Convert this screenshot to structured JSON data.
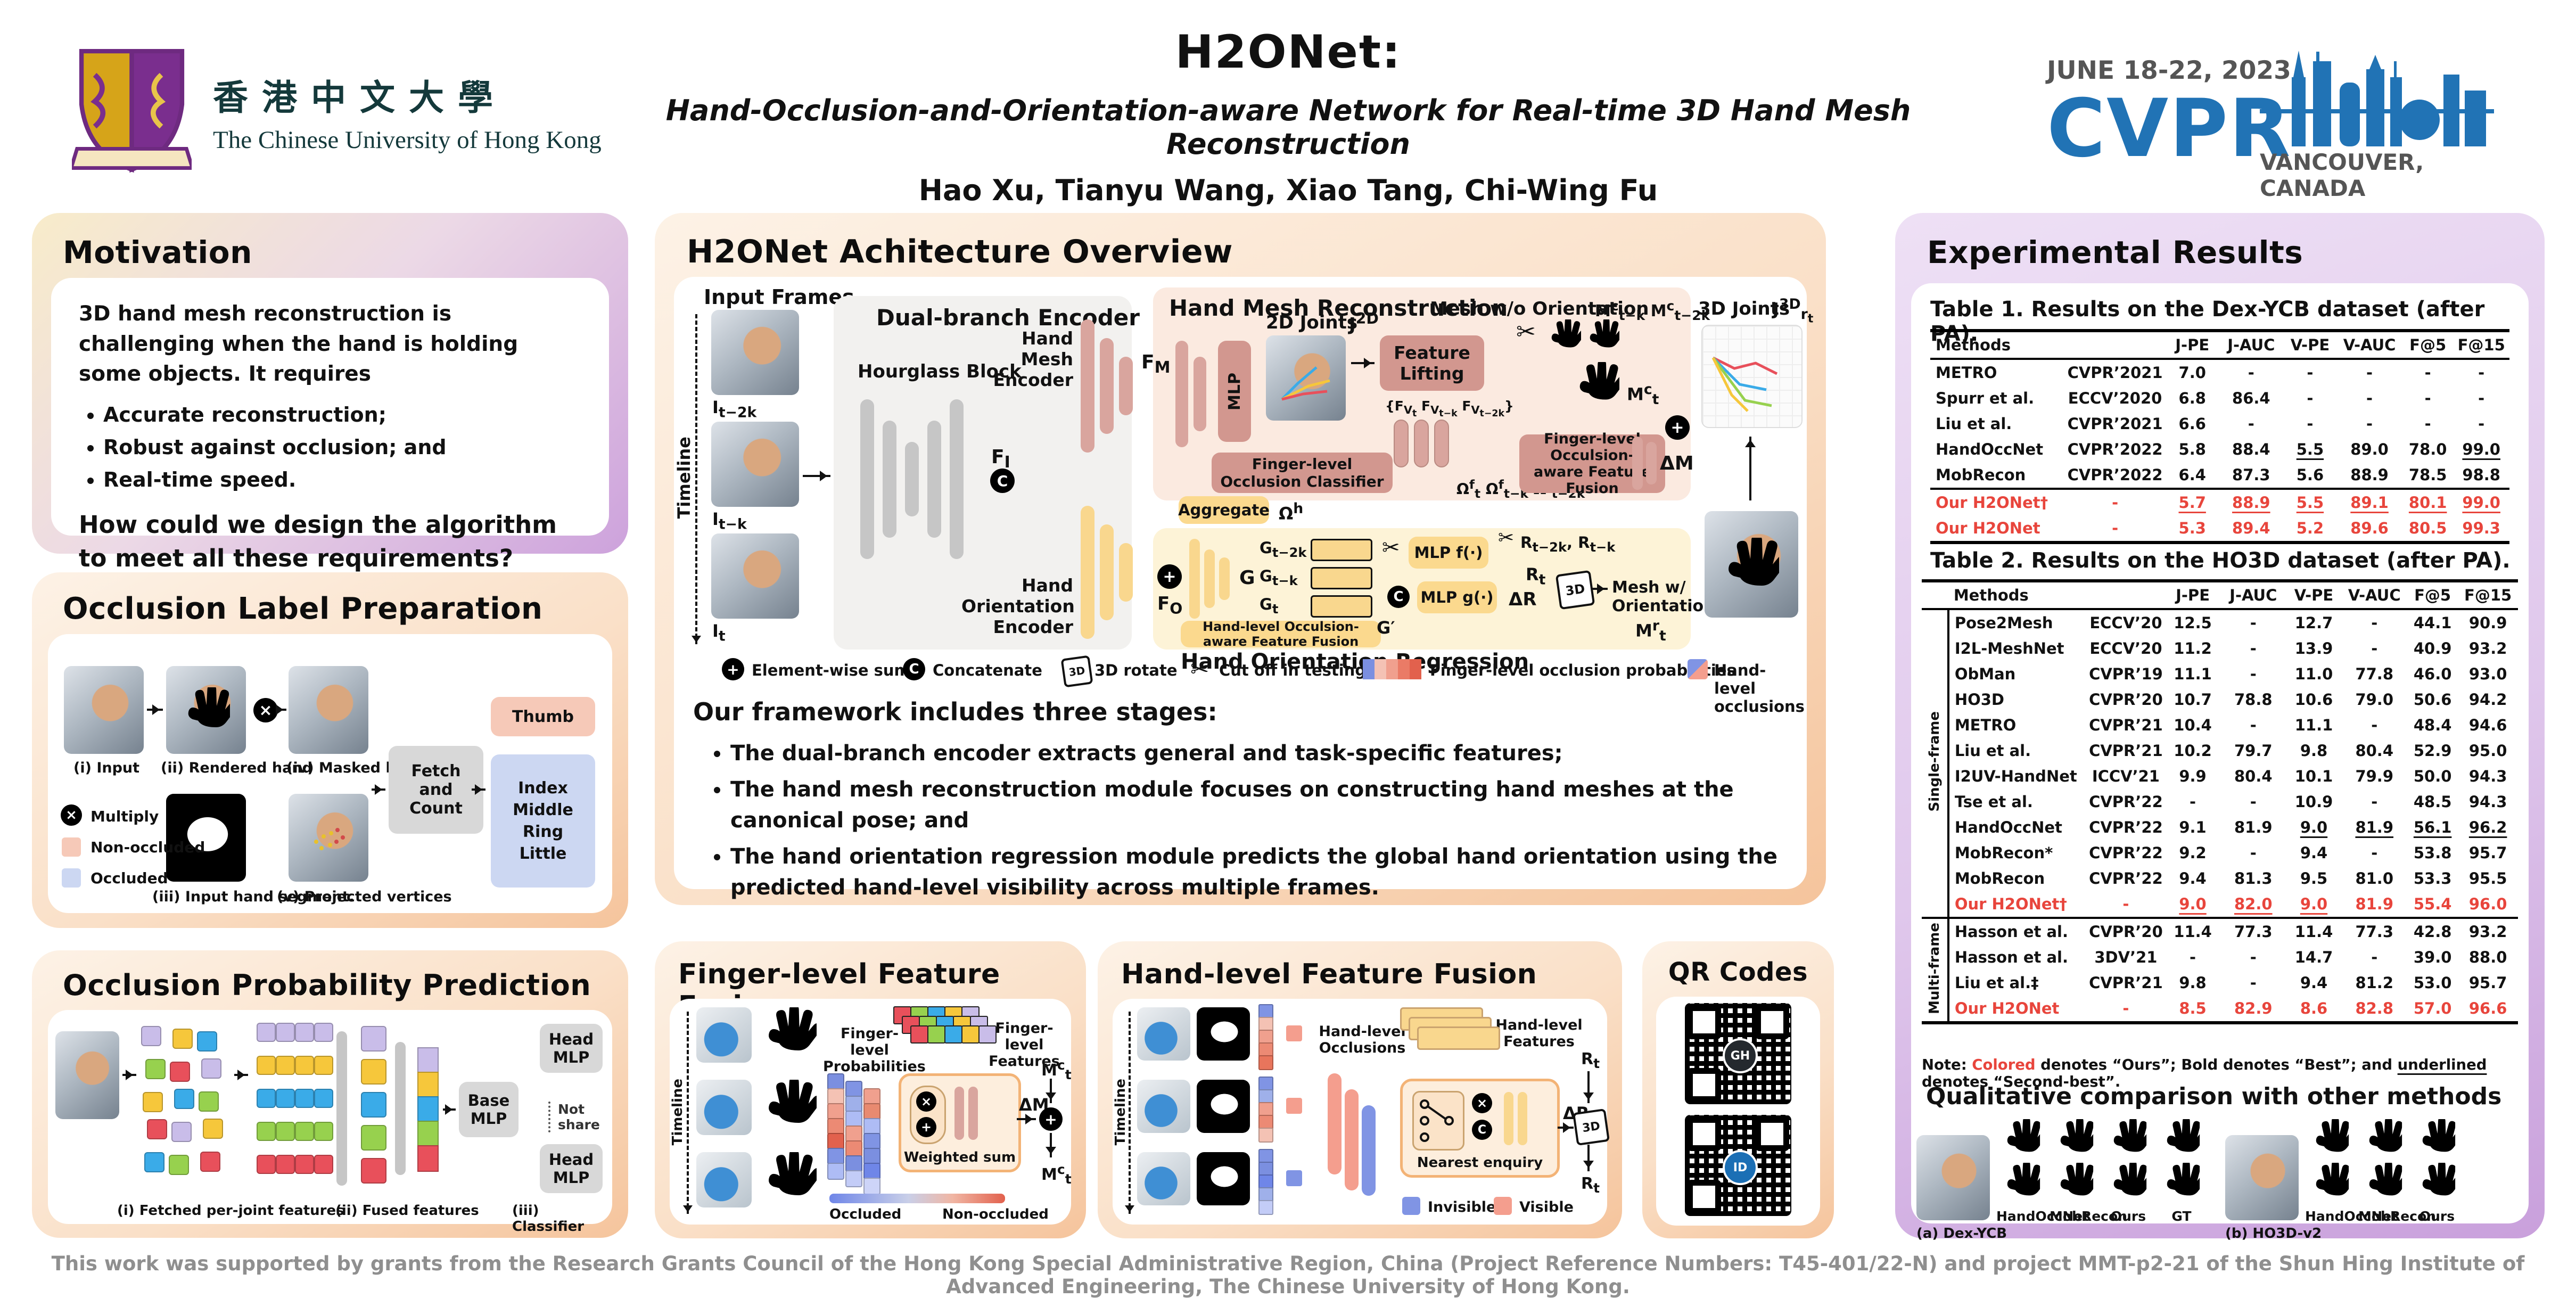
{
  "palette": {
    "red": "#e8453c",
    "cvpr-blue": "#2173b5",
    "gray-text": "#8f8f8f",
    "pink-bar": "#d9a59e",
    "pink-box": "#d2978f",
    "pink-region": "#fbeae0",
    "yellow-bar": "#f9d78e",
    "yellow-box": "#fbd98e",
    "yellow-region": "#fdf3d7",
    "gray-bar": "#c6c6c6",
    "blue-occ": "#8094e4",
    "pink-vis": "#f49e8e",
    "skin": "#e9c3a2",
    "mesh-blue": "#a3b9e8",
    "lav": "#ccd7f2",
    "pink-chip": "#f6c9b8",
    "f-red": "#e8505b",
    "f-green": "#97d14e",
    "f-blue": "#3aabe8",
    "f-yellow": "#f6c73b",
    "f-purple": "#c9bde9"
  },
  "header": {
    "cuhk_cn": "香港中文大學",
    "cuhk_en": "The Chinese University of Hong Kong",
    "title": "H2ONet:",
    "subtitle": "Hand-Occlusion-and-Orientation-aware Network for Real-time 3D Hand Mesh Reconstruction",
    "authors": "Hao Xu, Tianyu Wang, Xiao Tang, Chi-Wing Fu",
    "cvpr_dates": "JUNE 18-22, 2023",
    "cvpr_name": "CVPR",
    "cvpr_location": "VANCOUVER, CANADA"
  },
  "motivation": {
    "heading": "Motivation",
    "intro": "3D hand mesh reconstruction is challenging when the hand is holding some objects. It requires",
    "bullets": [
      "Accurate reconstruction;",
      "Robust against occlusion; and",
      "Real-time speed."
    ],
    "question": "How could we design the algorithm to meet all these requirements?"
  },
  "occlusion_label_prep": {
    "heading": "Occlusion Label Preparation",
    "captions": {
      "input": "(i) Input",
      "rendered": "(ii) Rendered hand",
      "segment": "(iii) Input hand segment.",
      "masked": "(iv) Masked hand",
      "projected": "(v) Projected vertices"
    },
    "legend": [
      {
        "label": "Multiply"
      },
      {
        "label": "Non-occluded"
      },
      {
        "label": "Occluded"
      }
    ],
    "fetch_count": "Fetch and Count",
    "fingers": {
      "thumb": "Thumb",
      "others": [
        "Index",
        "Middle",
        "Ring",
        "Little"
      ]
    }
  },
  "occlusion_prob_pred": {
    "heading": "Occlusion Probability Prediction",
    "captions": [
      "(i) Fetched per-joint features",
      "(ii) Fused features",
      "(iii) Classifier"
    ],
    "base_mlp": "Base MLP",
    "head_mlp": "Head MLP",
    "not_share": "Not share"
  },
  "architecture": {
    "heading": "H2ONet Achitecture Overview",
    "input_frames": "Input Frames",
    "timeline": "Timeline",
    "frames": [
      "I<sub>t−2k</sub>",
      "I<sub>t−k</sub>",
      "I<sub>t</sub>"
    ],
    "dual_branch": "Dual-branch Encoder",
    "hourglass": "Hourglass Block",
    "mesh_encoder": "Hand Mesh Encoder",
    "orient_encoder": "Hand Orientation Encoder",
    "f_i": "F<sub>I</sub>",
    "f_m": "F<sub>M</sub>",
    "f_o": "F<sub>O</sub>",
    "hmr": "Hand Mesh Reconstruction",
    "joints2d": "2D Joints",
    "j2d": "J<sup>2D</sup>",
    "mlp": "MLP",
    "feature_lifting": "Feature Lifting",
    "fv": "{F<sub>V<sub>t</sub></sub> F<sub>V<sub>t−k</sub></sub> F<sub>V<sub>t−2k</sub></sub>}",
    "classifier": "Finger-level Occlusion Classifier",
    "omega_f": "Ω<sup>f</sup><sub>t</sub> Ω<sup>f</sup><sub>t−k</sub> Ω<sup>f</sup><sub>t−2k</sub>",
    "aggregate": "Aggregate",
    "omega_h": "Ω<sup>h</sup>",
    "finger_fusion": "Finger-level Occulsion-aware Feature Fusion",
    "mesh_wo": "Mesh w/o Orientation",
    "m_prev": "M<sup>c</sup><sub>t−k</sub> M<sup>c</sup><sub>t−2k</sub>",
    "m_t": "M<sup>c</sup><sub>t</sub>",
    "delta_m": "ΔM",
    "hor": "Hand Orientation Regression",
    "g": "G",
    "g_stack": [
      "G<sub>t−2k</sub>",
      "G<sub>t−k</sub>",
      "G<sub>t</sub>"
    ],
    "g_prime": "G′",
    "hand_fusion": "Hand-level Occulsion-aware Feature Fusion",
    "mlp_f": "MLP f(·)",
    "mlp_g": "MLP g(·)",
    "r_prev": "R<sub>t−2k</sub>, R<sub>t−k</sub>",
    "r_t": "R<sub>t</sub>",
    "delta_r": "ΔR",
    "mesh_w": "Mesh w/ Orientation",
    "m_r": "M<sup>r</sup><sub>t</sub>",
    "joints3d": "3D Joints",
    "j3d": "J<sup>3D</sup><sub>r<sub>t</sub></sub>",
    "legend": [
      "Element-wise sum",
      "Concatenate",
      "3D rotate",
      "Cut off in testing",
      "Finger-level occlusion probabilities",
      "Hand-level occlusions"
    ],
    "stages_heading": "Our framework includes three stages:",
    "stages": [
      "The dual-branch encoder extracts general and task-specific features;",
      "The hand mesh reconstruction module focuses on constructing hand meshes at the canonical pose; and",
      "The hand orientation regression module predicts the global hand orientation using the predicted hand-level visibility across multiple frames."
    ]
  },
  "finger_fusion": {
    "heading": "Finger-level Feature Fusion",
    "timeline": "Timeline",
    "probs": "Finger-level Probabilities",
    "feats": "Finger-level Features",
    "weighted_sum": "Weighted sum",
    "delta_m": "ΔM",
    "m_t": "M<sup>c</sup><sub>t</sub>",
    "occluded": "Occluded",
    "non_occluded": "Non-occluded"
  },
  "hand_fusion": {
    "heading": "Hand-level Feature Fusion",
    "timeline": "Timeline",
    "occl": "Hand-level Occlusions",
    "feats": "Hand-level Features",
    "nearest": "Nearest enquiry",
    "delta_r": "ΔR",
    "r_t": "R<sub>t</sub>",
    "invisible": "Invisible",
    "visible": "Visible"
  },
  "qr": {
    "heading": "QR Codes"
  },
  "results": {
    "heading": "Experimental Results",
    "table1": {
      "title": "Table 1. Results on the Dex-YCB dataset (after PA).",
      "headers": [
        "Methods",
        "",
        "J-PE",
        "J-AUC",
        "V-PE",
        "V-AUC",
        "F@5",
        "F@15"
      ],
      "rows": [
        {
          "cells": [
            "METRO",
            "CVPR’2021",
            "7.0",
            "-",
            "-",
            "-",
            "-",
            "-"
          ]
        },
        {
          "cells": [
            "Spurr et al.",
            "ECCV’2020",
            "6.8",
            "86.4",
            "-",
            "-",
            "-",
            "-"
          ]
        },
        {
          "cells": [
            "Liu et al.",
            "CVPR’2021",
            "6.6",
            "-",
            "-",
            "-",
            "-",
            "-"
          ]
        },
        {
          "cells": [
            "HandOccNet",
            "CVPR’2022",
            "5.8",
            "88.4",
            {
              "t": "5.5",
              "u": true
            },
            "89.0",
            "78.0",
            {
              "t": "99.0",
              "u": true
            }
          ]
        },
        {
          "cells": [
            "MobRecon",
            "CVPR’2022",
            "6.4",
            "87.3",
            "5.6",
            "88.9",
            "78.5",
            "98.8"
          ]
        },
        {
          "ours": true,
          "sep": true,
          "cells": [
            "Our H2ONet†",
            "-",
            {
              "t": "5.7",
              "u": true
            },
            {
              "t": "88.9",
              "u": true
            },
            {
              "t": "5.5",
              "u": true
            },
            {
              "t": "89.1",
              "u": true
            },
            {
              "t": "80.1",
              "u": true
            },
            {
              "t": "99.0",
              "u": true
            }
          ]
        },
        {
          "ours": true,
          "bold": true,
          "cells": [
            "Our H2ONet",
            "-",
            "5.3",
            "89.4",
            "5.2",
            "89.6",
            "80.5",
            "99.3"
          ]
        }
      ]
    },
    "table2": {
      "title": "Table 2. Results on the HO3D dataset (after PA).",
      "headers": [
        "",
        "Methods",
        "",
        "J-PE",
        "J-AUC",
        "V-PE",
        "V-AUC",
        "F@5",
        "F@15"
      ],
      "groups": [
        {
          "label": "Single-frame",
          "rows": [
            {
              "cells": [
                "Pose2Mesh",
                "ECCV’20",
                "12.5",
                "-",
                "12.7",
                "-",
                "44.1",
                "90.9"
              ]
            },
            {
              "cells": [
                "I2L-MeshNet",
                "ECCV’20",
                "11.2",
                "-",
                "13.9",
                "-",
                "40.9",
                "93.2"
              ]
            },
            {
              "cells": [
                "ObMan",
                "CVPR’19",
                "11.1",
                "-",
                "11.0",
                "77.8",
                "46.0",
                "93.0"
              ]
            },
            {
              "cells": [
                "HO3D",
                "CVPR’20",
                "10.7",
                "78.8",
                "10.6",
                "79.0",
                "50.6",
                "94.2"
              ]
            },
            {
              "cells": [
                "METRO",
                "CVPR’21",
                "10.4",
                "-",
                "11.1",
                "-",
                "48.4",
                "94.6"
              ]
            },
            {
              "cells": [
                "Liu et al.",
                "CVPR’21",
                "10.2",
                "79.7",
                "9.8",
                "80.4",
                "52.9",
                "95.0"
              ]
            },
            {
              "cells": [
                "I2UV-HandNet",
                "ICCV’21",
                "9.9",
                "80.4",
                "10.1",
                "79.9",
                "50.0",
                "94.3"
              ]
            },
            {
              "cells": [
                "Tse et al.",
                "CVPR’22",
                "-",
                "-",
                "10.9",
                "-",
                "48.5",
                "94.3"
              ]
            },
            {
              "cells": [
                "HandOccNet",
                "CVPR’22",
                "9.1",
                "81.9",
                {
                  "t": "9.0",
                  "u": true
                },
                {
                  "t": "81.9",
                  "u": true
                },
                {
                  "t": "56.1",
                  "u": true
                },
                {
                  "t": "96.2",
                  "u": true
                }
              ]
            },
            {
              "cells": [
                "MobRecon*",
                "CVPR’22",
                "9.2",
                "-",
                "9.4",
                "-",
                "53.8",
                "95.7"
              ]
            },
            {
              "cells": [
                "MobRecon",
                "CVPR’22",
                "9.4",
                "81.3",
                "9.5",
                "81.0",
                "53.3",
                "95.5"
              ]
            },
            {
              "ours": true,
              "cells": [
                "Our H2ONet†",
                "-",
                {
                  "t": "9.0",
                  "u": true
                },
                {
                  "t": "82.0",
                  "u": true
                },
                {
                  "t": "9.0",
                  "u": true
                },
                "81.9",
                "55.4",
                "96.0"
              ]
            }
          ]
        },
        {
          "label": "Multi-frame",
          "rows": [
            {
              "cells": [
                "Hasson et al.",
                "CVPR’20",
                "11.4",
                "77.3",
                "11.4",
                "77.3",
                "42.8",
                "93.2"
              ]
            },
            {
              "cells": [
                "Hasson et al.",
                "3DV’21",
                "-",
                "-",
                "14.7",
                "-",
                "39.0",
                "88.0"
              ]
            },
            {
              "cells": [
                "Liu et al.‡",
                "CVPR’21",
                "9.8",
                "-",
                "9.4",
                "81.2",
                "53.0",
                "95.7"
              ]
            },
            {
              "ours": true,
              "bold": true,
              "cells": [
                "Our H2ONet",
                "-",
                "8.5",
                "82.9",
                "8.6",
                "82.8",
                "57.0",
                "96.6"
              ]
            }
          ]
        }
      ]
    },
    "note_parts": [
      {
        "t": "Note: "
      },
      {
        "t": "Colored",
        "red": true
      },
      {
        "t": " denotes “Ours”; "
      },
      {
        "t": "Bold",
        "b": true
      },
      {
        "t": " denotes “Best”; and "
      },
      {
        "t": "underlined",
        "u": true
      },
      {
        "t": " denotes “Second-best”."
      }
    ],
    "qualitative": {
      "heading": "Qualitative comparison with other methods",
      "group_a": {
        "label": "(a) Dex-YCB",
        "methods": [
          "HandOccNet",
          "MobRecon",
          "Ours",
          "GT"
        ]
      },
      "group_b": {
        "label": "(b) HO3D-v2",
        "methods": [
          "HandOccNet",
          "MobRecon",
          "Ours"
        ]
      }
    }
  },
  "footer": {
    "text": "This work was supported by grants from the Research Grants Council of the Hong Kong Special Administrative Region, China (Project Reference Numbers: T45-401/22-N) and project MMT-p2-21 of the Shun Hing Institute of Advanced Engineering, The Chinese University of Hong Kong."
  }
}
